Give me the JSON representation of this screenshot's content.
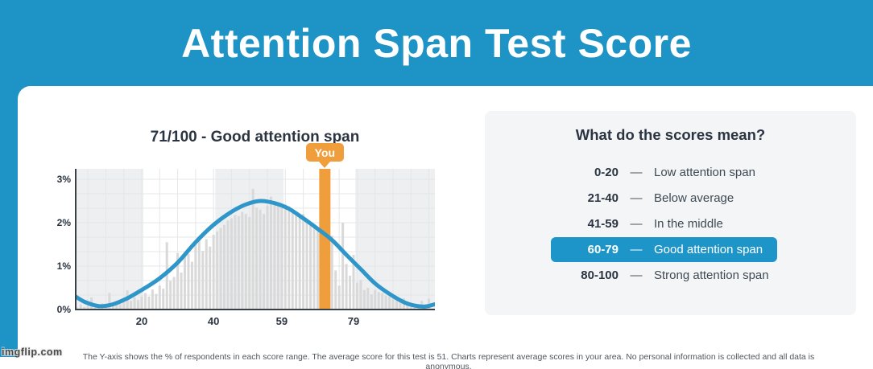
{
  "header": {
    "title": "Attention Span Test Score"
  },
  "chart": {
    "title": "71/100 - Good attention span",
    "you_label": "You"
  },
  "chart_data": {
    "type": "bar",
    "subtype": "score-distribution histogram with smoothed curve and marker",
    "title": "71/100 - Good attention span",
    "you_score": 71,
    "average_score": 51,
    "x_ticks": [
      20,
      40,
      59,
      79
    ],
    "y_ticks": [
      {
        "value": 3,
        "label": "3%"
      },
      {
        "value": 2,
        "label": "2%"
      },
      {
        "value": 1,
        "label": "1%"
      },
      {
        "value": 0,
        "label": "0%"
      }
    ],
    "x_range": [
      0,
      100
    ],
    "y_range_percent": [
      0,
      3.25
    ],
    "grid": "faint",
    "bands": [
      {
        "from": 0,
        "to": 20.5,
        "shade": "gray"
      },
      {
        "from": 20.5,
        "to": 40.5,
        "shade": "white"
      },
      {
        "from": 40.5,
        "to": 59.5,
        "shade": "gray"
      },
      {
        "from": 59.5,
        "to": 79.5,
        "shade": "white"
      },
      {
        "from": 79.5,
        "to": 102,
        "shade": "gray"
      }
    ],
    "bars_note": "estimated % of respondents at each score 1-100",
    "bars": [
      0.1,
      0.05,
      0.12,
      0.06,
      0.09,
      0.28,
      0.1,
      0.06,
      0.14,
      0.1,
      0.38,
      0.12,
      0.18,
      0.12,
      0.25,
      0.44,
      0.2,
      0.28,
      0.22,
      0.3,
      0.38,
      0.3,
      0.46,
      0.36,
      0.55,
      0.48,
      1.55,
      0.66,
      0.75,
      1.3,
      0.85,
      1.25,
      1.28,
      1.1,
      1.52,
      1.6,
      1.35,
      1.62,
      1.45,
      1.72,
      1.8,
      1.88,
      1.95,
      2.05,
      2.1,
      2.18,
      2.15,
      2.25,
      2.2,
      2.13,
      2.78,
      2.35,
      2.3,
      2.2,
      2.4,
      2.6,
      2.45,
      2.4,
      2.35,
      2.42,
      2.38,
      2.3,
      2.25,
      2.15,
      2.2,
      2.05,
      2.0,
      1.92,
      1.88,
      1.8,
      1.75,
      1.6,
      1.7,
      0.9,
      0.55,
      2.0,
      1.05,
      0.78,
      1.26,
      0.62,
      0.68,
      0.45,
      0.5,
      0.35,
      0.45,
      0.4,
      0.38,
      0.32,
      0.3,
      0.28,
      0.22,
      0.2,
      0.26,
      0.15,
      0.12,
      0.1,
      0.08,
      0.2,
      0.06,
      0.25
    ],
    "curve": [
      [
        1,
        0.33
      ],
      [
        4,
        0.18
      ],
      [
        8,
        0.08
      ],
      [
        12,
        0.12
      ],
      [
        16,
        0.26
      ],
      [
        20,
        0.45
      ],
      [
        25,
        0.72
      ],
      [
        30,
        1.08
      ],
      [
        35,
        1.55
      ],
      [
        40,
        1.95
      ],
      [
        45,
        2.25
      ],
      [
        49,
        2.42
      ],
      [
        53,
        2.5
      ],
      [
        57,
        2.45
      ],
      [
        61,
        2.32
      ],
      [
        65,
        2.1
      ],
      [
        69,
        1.86
      ],
      [
        73,
        1.6
      ],
      [
        77,
        1.26
      ],
      [
        81,
        0.93
      ],
      [
        85,
        0.6
      ],
      [
        89,
        0.36
      ],
      [
        93,
        0.17
      ],
      [
        96,
        0.09
      ],
      [
        99,
        0.07
      ],
      [
        102,
        0.13
      ]
    ]
  },
  "legend": {
    "title": "What do the scores mean?",
    "dash": "—",
    "rows": [
      {
        "range": "0-20",
        "desc": "Low attention span",
        "active": false
      },
      {
        "range": "21-40",
        "desc": "Below average",
        "active": false
      },
      {
        "range": "41-59",
        "desc": "In the middle",
        "active": false
      },
      {
        "range": "60-79",
        "desc": "Good attention span",
        "active": true
      },
      {
        "range": "80-100",
        "desc": "Strong attention span",
        "active": false
      }
    ]
  },
  "footnote": "The Y-axis shows the % of respondents in each score range. The average score for this test is 51. Charts represent average scores in your area. No personal information is collected and all data is anonymous.",
  "watermark": "imgflip.com",
  "colors": {
    "header_blue": "#1e93c6",
    "pill_blue": "#1e95c8",
    "curve_blue": "#2e96c9",
    "orange": "#f09d3c",
    "navy": "#2b3440",
    "panel_gray": "#f3f5f6",
    "band_gray": "#edeff1",
    "bar_gray": "#d9d9d9",
    "grid_gray": "#e4e7ea",
    "axis_dark": "#3a3f44"
  }
}
